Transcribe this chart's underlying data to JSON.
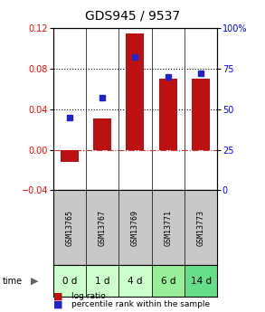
{
  "title": "GDS945 / 9537",
  "categories": [
    "GSM13765",
    "GSM13767",
    "GSM13769",
    "GSM13771",
    "GSM13773"
  ],
  "time_labels": [
    "0 d",
    "1 d",
    "4 d",
    "6 d",
    "14 d"
  ],
  "log_ratio": [
    -0.012,
    0.031,
    0.115,
    0.07,
    0.07
  ],
  "percentile": [
    45,
    57,
    82,
    70,
    72
  ],
  "bar_color": "#bb1111",
  "dot_color": "#2222cc",
  "ylim_left": [
    -0.04,
    0.12
  ],
  "ylim_right": [
    0,
    100
  ],
  "yticks_left": [
    -0.04,
    0,
    0.04,
    0.08,
    0.12
  ],
  "yticks_right": [
    0,
    25,
    50,
    75,
    100
  ],
  "hlines": [
    0.04,
    0.08
  ],
  "bg_color": "#ffffff",
  "gsm_bg": "#c8c8c8",
  "time_bg_colors": [
    "#ccffcc",
    "#ccffcc",
    "#ccffcc",
    "#99ee99",
    "#66dd88"
  ],
  "legend_items": [
    "log ratio",
    "percentile rank within the sample"
  ],
  "legend_colors": [
    "#bb1111",
    "#2222cc"
  ]
}
